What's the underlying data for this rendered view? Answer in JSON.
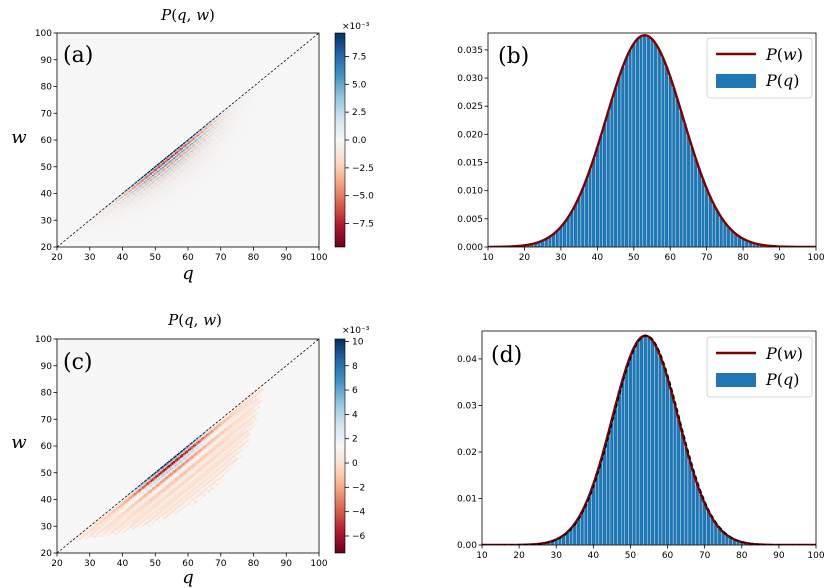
{
  "chart_data": [
    {
      "panel": "(a)",
      "type": "heatmap",
      "title": "P(q, w)",
      "xlabel": "q",
      "ylabel": "w",
      "xlim": [
        20,
        100
      ],
      "ylim": [
        20,
        100
      ],
      "xticks": [
        20,
        30,
        40,
        50,
        60,
        70,
        80,
        90,
        100
      ],
      "yticks": [
        20,
        30,
        40,
        50,
        60,
        70,
        80,
        90,
        100
      ],
      "diagonal_line": true,
      "colormap": "RdBu",
      "colorbar": {
        "exponent_label": "×10⁻³",
        "ticks": [
          "7.5",
          "5.0",
          "2.5",
          "0.0",
          "−2.5",
          "−5.0",
          "−7.5"
        ],
        "tick_values": [
          7.5,
          5.0,
          2.5,
          0.0,
          -2.5,
          -5.0,
          -7.5
        ],
        "vmin": -9.6,
        "vmax": 9.6
      },
      "pattern": {
        "mean": 53,
        "sigma": 10.5,
        "band_width": 5.5,
        "fringe_period": 2.6,
        "amplitude": 9.6
      }
    },
    {
      "panel": "(b)",
      "type": "bar",
      "xlim": [
        10,
        100
      ],
      "ylim": [
        0,
        0.038
      ],
      "xticks": [
        10,
        20,
        30,
        40,
        50,
        60,
        70,
        80,
        90,
        100
      ],
      "yticks": [
        "0.000",
        "0.005",
        "0.010",
        "0.015",
        "0.020",
        "0.025",
        "0.030",
        "0.035"
      ],
      "ytick_values": [
        0,
        0.005,
        0.01,
        0.015,
        0.02,
        0.025,
        0.03,
        0.035
      ],
      "series": [
        {
          "name": "P(w)",
          "kind": "line",
          "color": "#7f0000",
          "mean": 53,
          "sigma": 10.6,
          "peak": 0.0376
        },
        {
          "name": "P(q)",
          "kind": "bar",
          "color": "#1f77b4",
          "mean": 53,
          "sigma": 10.6,
          "peak": 0.0376
        }
      ],
      "legend": "top-right"
    },
    {
      "panel": "(c)",
      "type": "heatmap",
      "title": "P(q, w)",
      "xlabel": "q",
      "ylabel": "w",
      "xlim": [
        20,
        100
      ],
      "ylim": [
        20,
        100
      ],
      "xticks": [
        20,
        30,
        40,
        50,
        60,
        70,
        80,
        90,
        100
      ],
      "yticks": [
        20,
        30,
        40,
        50,
        60,
        70,
        80,
        90,
        100
      ],
      "diagonal_line": true,
      "colormap": "RdBu",
      "colorbar": {
        "exponent_label": "×10⁻³",
        "ticks": [
          "10",
          "8",
          "6",
          "4",
          "2",
          "0",
          "−2",
          "−4",
          "−6"
        ],
        "tick_values": [
          10,
          8,
          6,
          4,
          2,
          0,
          -2,
          -4,
          -6
        ],
        "vmin": -7.4,
        "vmax": 10.2
      },
      "pattern": {
        "mean": 54,
        "sigma": 9,
        "band_width": 4.5,
        "fringe_period": 3.6,
        "amplitude": 10.2
      }
    },
    {
      "panel": "(d)",
      "type": "bar",
      "xlim": [
        10,
        100
      ],
      "ylim": [
        0,
        0.046
      ],
      "xticks": [
        10,
        20,
        30,
        40,
        50,
        60,
        70,
        80,
        90,
        100
      ],
      "yticks": [
        "0.00",
        "0.01",
        "0.02",
        "0.03",
        "0.04"
      ],
      "ytick_values": [
        0,
        0.01,
        0.02,
        0.03,
        0.04
      ],
      "series": [
        {
          "name": "P(w)",
          "kind": "line",
          "color": "#7f0000",
          "mean": 54,
          "sigma": 8.9,
          "peak": 0.045
        },
        {
          "name": "P(q)",
          "kind": "bar",
          "color": "#1f77b4",
          "mean": 54,
          "sigma": 8.9,
          "peak": 0.045
        },
        {
          "name": "",
          "kind": "dashed",
          "color": "#000000",
          "mean": 54.3,
          "sigma": 8.9,
          "peak": 0.045
        }
      ],
      "legend": "top-right"
    }
  ]
}
